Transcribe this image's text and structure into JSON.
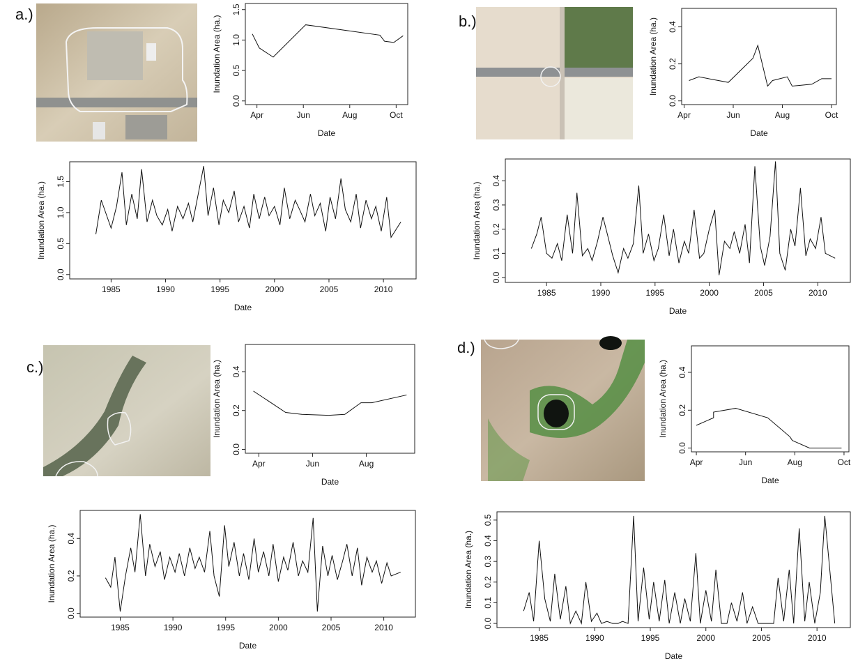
{
  "panels": [
    "a.)",
    "b.)",
    "c.)",
    "d.)"
  ],
  "chart_data": [
    {
      "type": "line",
      "xlabel": "Date",
      "ylabel": "Inundation Area (ha.)",
      "x": [
        3.8,
        4.1,
        4.7,
        6.1,
        9.3,
        9.5,
        9.9,
        10.3
      ],
      "values": [
        1.1,
        0.87,
        0.72,
        1.25,
        1.08,
        0.98,
        0.96,
        1.07
      ],
      "xlim": [
        3.5,
        10.5
      ],
      "ylim": [
        -0.06,
        1.6
      ],
      "xticks": [
        {
          "value": 4,
          "label": "Apr"
        },
        {
          "value": 6,
          "label": "Jun"
        },
        {
          "value": 8,
          "label": "Aug"
        },
        {
          "value": 10,
          "label": "Oct"
        }
      ],
      "yticks": [
        {
          "value": 0,
          "label": "0.0"
        },
        0.5,
        {
          "value": 1,
          "label": "1.0"
        },
        1.5
      ],
      "color": "#111111"
    },
    {
      "type": "line",
      "xlabel": "Date",
      "ylabel": "Inundation Area (ha.)",
      "x": [
        4.2,
        4.6,
        5.8,
        6.8,
        7.0,
        7.4,
        7.6,
        8.2,
        8.4,
        9.2,
        9.6,
        10.0
      ],
      "values": [
        0.11,
        0.13,
        0.1,
        0.23,
        0.3,
        0.08,
        0.11,
        0.13,
        0.08,
        0.09,
        0.12,
        0.12
      ],
      "xlim": [
        3.9,
        10.2
      ],
      "ylim": [
        -0.02,
        0.5
      ],
      "xticks": [
        {
          "value": 4,
          "label": "Apr"
        },
        {
          "value": 6,
          "label": "Jun"
        },
        {
          "value": 8,
          "label": "Aug"
        },
        {
          "value": 10,
          "label": "Oct"
        }
      ],
      "yticks": [
        {
          "value": 0,
          "label": "0.0"
        },
        0.2,
        0.4
      ],
      "color": "#111111"
    },
    {
      "type": "line",
      "xlabel": "Date",
      "ylabel": "Inundation Area (ha.)",
      "x": [
        3.8,
        5.0,
        5.6,
        6.6,
        7.2,
        7.8,
        8.2,
        9.5
      ],
      "values": [
        0.3,
        0.19,
        0.18,
        0.175,
        0.18,
        0.24,
        0.24,
        0.28
      ],
      "xlim": [
        3.5,
        9.8
      ],
      "ylim": [
        -0.02,
        0.54
      ],
      "xticks": [
        {
          "value": 4,
          "label": "Apr"
        },
        {
          "value": 6,
          "label": "Jun"
        },
        {
          "value": 8,
          "label": "Aug"
        }
      ],
      "yticks": [
        {
          "value": 0,
          "label": "0.0"
        },
        0.2,
        0.4
      ],
      "color": "#111111"
    },
    {
      "type": "line",
      "xlabel": "Date",
      "ylabel": "Inundation Area (ha.)",
      "x": [
        4.0,
        4.7,
        4.7,
        5.6,
        6.9,
        7.8,
        7.9,
        8.6,
        9.9
      ],
      "values": [
        0.12,
        0.16,
        0.19,
        0.21,
        0.16,
        0.06,
        0.04,
        0,
        0
      ],
      "xlim": [
        3.8,
        10.2
      ],
      "ylim": [
        -0.02,
        0.54
      ],
      "xticks": [
        {
          "value": 4,
          "label": "Apr"
        },
        {
          "value": 6,
          "label": "Jun"
        },
        {
          "value": 8,
          "label": "Aug"
        },
        {
          "value": 10,
          "label": "Oct"
        }
      ],
      "yticks": [
        {
          "value": 0,
          "label": "0.0"
        },
        0.2,
        0.4
      ],
      "color": "#111111"
    },
    {
      "type": "line",
      "xlabel": "Date",
      "ylabel": "Inundation Area (ha.)",
      "x": [
        1983.6,
        1984.1,
        1984.5,
        1985.0,
        1985.5,
        1986.0,
        1986.4,
        1986.9,
        1987.4,
        1987.8,
        1988.3,
        1988.8,
        1989.2,
        1989.7,
        1990.2,
        1990.6,
        1991.1,
        1991.6,
        1992.1,
        1992.5,
        1993.0,
        1993.5,
        1993.9,
        1994.4,
        1994.9,
        1995.3,
        1995.8,
        1996.3,
        1996.7,
        1997.2,
        1997.7,
        1998.1,
        1998.6,
        1999.1,
        1999.5,
        2000.0,
        2000.5,
        2000.9,
        2001.4,
        2001.9,
        2002.3,
        2002.8,
        2003.3,
        2003.7,
        2004.2,
        2004.7,
        2005.1,
        2005.6,
        2006.1,
        2006.5,
        2007.0,
        2007.5,
        2007.9,
        2008.4,
        2008.9,
        2009.3,
        2009.8,
        2010.3,
        2010.7,
        2011.6
      ],
      "values": [
        0.65,
        1.2,
        1.0,
        0.75,
        1.1,
        1.65,
        0.8,
        1.3,
        0.9,
        1.7,
        0.85,
        1.2,
        0.95,
        0.8,
        1.05,
        0.7,
        1.1,
        0.9,
        1.15,
        0.85,
        1.3,
        1.75,
        0.95,
        1.4,
        0.8,
        1.2,
        1.0,
        1.35,
        0.85,
        1.1,
        0.75,
        1.3,
        0.9,
        1.25,
        0.95,
        1.1,
        0.8,
        1.4,
        0.9,
        1.2,
        1.05,
        0.85,
        1.3,
        0.95,
        1.15,
        0.7,
        1.25,
        0.9,
        1.55,
        1.05,
        0.85,
        1.3,
        0.75,
        1.2,
        0.9,
        1.1,
        0.7,
        1.25,
        0.6,
        0.85
      ],
      "xlim": [
        1981.2,
        2013
      ],
      "ylim": [
        -0.07,
        1.82
      ],
      "xticks": [
        1985,
        1990,
        1995,
        2000,
        2005,
        2010
      ],
      "yticks": [
        {
          "value": 0,
          "label": "0.0"
        },
        0.5,
        {
          "value": 1,
          "label": "1.0"
        },
        1.5
      ],
      "color": "#111111"
    },
    {
      "type": "line",
      "xlabel": "Date",
      "ylabel": "Inundation Area (ha.)",
      "x": [
        1983.6,
        1984.1,
        1984.5,
        1985.0,
        1985.5,
        1986.0,
        1986.4,
        1986.9,
        1987.4,
        1987.8,
        1988.3,
        1988.8,
        1989.2,
        1989.7,
        1990.2,
        1990.6,
        1991.1,
        1991.6,
        1992.1,
        1992.5,
        1993.0,
        1993.5,
        1993.9,
        1994.4,
        1994.9,
        1995.3,
        1995.8,
        1996.3,
        1996.7,
        1997.2,
        1997.7,
        1998.1,
        1998.6,
        1999.1,
        1999.5,
        2000.0,
        2000.5,
        2000.9,
        2001.4,
        2001.9,
        2002.3,
        2002.8,
        2003.3,
        2003.7,
        2004.2,
        2004.7,
        2005.1,
        2005.6,
        2006.1,
        2006.5,
        2007.0,
        2007.5,
        2007.9,
        2008.4,
        2008.9,
        2009.3,
        2009.8,
        2010.3,
        2010.7,
        2011.6
      ],
      "values": [
        0.12,
        0.18,
        0.25,
        0.1,
        0.08,
        0.14,
        0.07,
        0.26,
        0.1,
        0.35,
        0.09,
        0.12,
        0.07,
        0.15,
        0.25,
        0.18,
        0.09,
        0.02,
        0.12,
        0.08,
        0.14,
        0.38,
        0.1,
        0.18,
        0.07,
        0.12,
        0.26,
        0.09,
        0.2,
        0.06,
        0.15,
        0.1,
        0.28,
        0.08,
        0.1,
        0.2,
        0.28,
        0.01,
        0.15,
        0.12,
        0.19,
        0.1,
        0.22,
        0.06,
        0.46,
        0.13,
        0.05,
        0.17,
        0.48,
        0.1,
        0.03,
        0.2,
        0.13,
        0.37,
        0.09,
        0.16,
        0.12,
        0.25,
        0.1,
        0.08
      ],
      "xlim": [
        1981.2,
        2013
      ],
      "ylim": [
        -0.02,
        0.49
      ],
      "xticks": [
        1985,
        1990,
        1995,
        2000,
        2005,
        2010
      ],
      "yticks": [
        {
          "value": 0,
          "label": "0.0"
        },
        0.1,
        0.2,
        0.3,
        0.4
      ],
      "color": "#111111"
    },
    {
      "type": "line",
      "xlabel": "Date",
      "ylabel": "Inundation Area (ha.)",
      "x": [
        1983.6,
        1984.1,
        1984.5,
        1985.0,
        1985.5,
        1986.0,
        1986.4,
        1986.9,
        1987.4,
        1987.8,
        1988.3,
        1988.8,
        1989.2,
        1989.7,
        1990.2,
        1990.6,
        1991.1,
        1991.6,
        1992.1,
        1992.5,
        1993.0,
        1993.5,
        1993.9,
        1994.4,
        1994.9,
        1995.3,
        1995.8,
        1996.3,
        1996.7,
        1997.2,
        1997.7,
        1998.1,
        1998.6,
        1999.1,
        1999.5,
        2000.0,
        2000.5,
        2000.9,
        2001.4,
        2001.9,
        2002.3,
        2002.8,
        2003.3,
        2003.7,
        2004.2,
        2004.7,
        2005.1,
        2005.6,
        2006.1,
        2006.5,
        2007.0,
        2007.5,
        2007.9,
        2008.4,
        2008.9,
        2009.3,
        2009.8,
        2010.3,
        2010.7,
        2011.6
      ],
      "values": [
        0.19,
        0.14,
        0.3,
        0.01,
        0.2,
        0.35,
        0.22,
        0.53,
        0.2,
        0.37,
        0.25,
        0.33,
        0.18,
        0.3,
        0.22,
        0.32,
        0.2,
        0.35,
        0.24,
        0.3,
        0.22,
        0.44,
        0.2,
        0.09,
        0.47,
        0.25,
        0.38,
        0.2,
        0.32,
        0.18,
        0.4,
        0.22,
        0.33,
        0.2,
        0.37,
        0.17,
        0.3,
        0.23,
        0.38,
        0.2,
        0.28,
        0.22,
        0.51,
        0.01,
        0.36,
        0.2,
        0.31,
        0.18,
        0.28,
        0.37,
        0.2,
        0.35,
        0.15,
        0.3,
        0.22,
        0.28,
        0.16,
        0.27,
        0.2,
        0.22
      ],
      "xlim": [
        1981.2,
        2013
      ],
      "ylim": [
        -0.02,
        0.55
      ],
      "xticks": [
        1985,
        1990,
        1995,
        2000,
        2005,
        2010
      ],
      "yticks": [
        {
          "value": 0,
          "label": "0.0"
        },
        0.2,
        0.4
      ],
      "color": "#111111"
    },
    {
      "type": "line",
      "xlabel": "Date",
      "ylabel": "Inundation Area (ha.)",
      "x": [
        1983.6,
        1984.1,
        1984.5,
        1985.0,
        1985.5,
        1986.0,
        1986.4,
        1986.9,
        1987.4,
        1987.8,
        1988.3,
        1988.8,
        1989.2,
        1989.7,
        1990.2,
        1990.6,
        1991.1,
        1991.6,
        1992.1,
        1992.5,
        1993.0,
        1993.5,
        1993.9,
        1994.4,
        1994.9,
        1995.3,
        1995.8,
        1996.3,
        1996.7,
        1997.2,
        1997.7,
        1998.1,
        1998.6,
        1999.1,
        1999.5,
        2000.0,
        2000.5,
        2000.9,
        2001.4,
        2001.9,
        2002.3,
        2002.8,
        2003.3,
        2003.7,
        2004.2,
        2004.7,
        2005.1,
        2005.6,
        2006.1,
        2006.5,
        2007.0,
        2007.5,
        2007.9,
        2008.4,
        2008.9,
        2009.3,
        2009.8,
        2010.3,
        2010.7,
        2011.6
      ],
      "values": [
        0.06,
        0.15,
        0.01,
        0.4,
        0.12,
        0.01,
        0.24,
        0.02,
        0.18,
        0,
        0.06,
        0,
        0.2,
        0.01,
        0.05,
        0,
        0.01,
        0,
        0,
        0.01,
        0,
        0.52,
        0.01,
        0.27,
        0.02,
        0.2,
        0.01,
        0.21,
        0,
        0.15,
        0,
        0.12,
        0.01,
        0.34,
        0,
        0.16,
        0.01,
        0.26,
        0,
        0,
        0.1,
        0.01,
        0.15,
        0,
        0.08,
        0,
        0,
        0,
        0,
        0.22,
        0.01,
        0.26,
        0,
        0.46,
        0.01,
        0.2,
        0,
        0.15,
        0.52,
        0
      ],
      "xlim": [
        1981.2,
        2013
      ],
      "ylim": [
        -0.02,
        0.54
      ],
      "xticks": [
        1985,
        1990,
        1995,
        2000,
        2005,
        2010
      ],
      "yticks": [
        {
          "value": 0,
          "label": "0.0"
        },
        0.1,
        0.2,
        0.3,
        0.4,
        0.5
      ],
      "color": "#111111"
    }
  ]
}
